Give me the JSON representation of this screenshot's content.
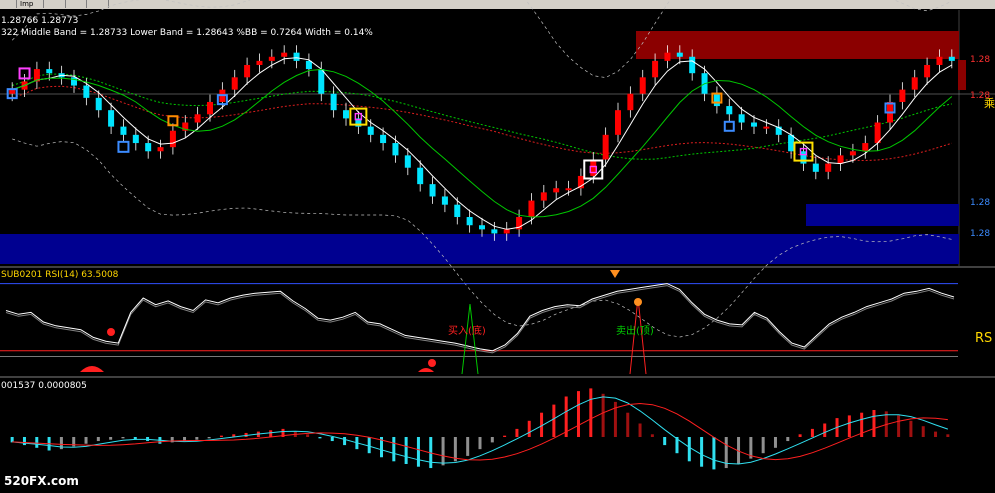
{
  "toolbar": {
    "tabs": [
      "",
      "Imp",
      "",
      "",
      ""
    ]
  },
  "main": {
    "price_line": "1.28766 1.28773",
    "bb_line": "322 Middle Band = 1.28733 Lower Band = 1.28643 %BB = 0.7264 Width = 0.14%",
    "right_labels": [
      "1.28",
      "1.28",
      "1.28",
      "1.28"
    ],
    "side_char": "乘"
  },
  "rsi": {
    "header": "SUB0201 RSI(14) 63.5008",
    "buy_label": "买入(底)",
    "sell_label": "卖出(顶)",
    "side_label": "RS"
  },
  "macd": {
    "header": "001537 0.0000805"
  },
  "watermark": "520FX.com",
  "colors": {
    "bull": "#ff0000",
    "bear": "#00e5ff",
    "zone_top": "#8b0000",
    "zone_bottom": "#000090",
    "ma_fast": "#ffffff",
    "ma_mid": "#00c800",
    "ma_slow": "#dc1e1e",
    "marker_magenta": "#ff40ff",
    "marker_yellow": "#ffe000",
    "marker_orange": "#ff8c00",
    "marker_blue": "#3c8cff",
    "marker_white": "#ffffff"
  },
  "chart_data": [
    {
      "type": "candlestick",
      "closes": [
        55,
        57,
        60,
        59,
        58,
        56,
        53,
        50,
        46,
        44,
        42,
        40,
        41,
        45,
        47,
        49,
        52,
        55,
        58,
        61,
        62,
        63,
        64,
        62,
        60,
        54,
        50,
        48,
        46,
        44,
        42,
        39,
        36,
        32,
        29,
        27,
        24,
        22,
        21,
        20,
        21,
        24,
        28,
        30,
        31,
        31,
        34,
        38,
        44,
        50,
        54,
        58,
        62,
        64,
        63,
        59,
        54,
        51,
        49,
        47,
        46,
        46,
        44,
        40,
        37,
        35,
        37,
        39,
        40,
        42,
        47,
        52,
        55,
        58,
        61,
        63,
        62
      ],
      "bollinger": true,
      "moving_averages": [
        "fast",
        "mid",
        "slow"
      ],
      "zones": [
        "resistance",
        "support"
      ],
      "right_axis_labels": [
        "1.28",
        "1.28",
        "1.28",
        "1.28"
      ]
    },
    {
      "type": "line",
      "name": "RSI(14)",
      "value": 63.5008,
      "signals": [
        "买入(底)",
        "卖出(顶)"
      ],
      "values": [
        62,
        58,
        60,
        50,
        46,
        44,
        42,
        34,
        30,
        28,
        60,
        75,
        68,
        72,
        66,
        62,
        73,
        70,
        75,
        78,
        80,
        81,
        82,
        72,
        64,
        54,
        52,
        55,
        60,
        50,
        48,
        42,
        36,
        34,
        32,
        30,
        28,
        25,
        22,
        20,
        26,
        38,
        56,
        62,
        66,
        68,
        67,
        74,
        78,
        82,
        84,
        86,
        88,
        90,
        84,
        70,
        58,
        52,
        48,
        47,
        60,
        54,
        40,
        28,
        24,
        36,
        48,
        55,
        60,
        66,
        70,
        74,
        80,
        82,
        85,
        80,
        76
      ]
    },
    {
      "type": "bar",
      "name": "MACD",
      "value": 8.05e-05,
      "values": [
        -4,
        -6,
        -8,
        -10,
        -9,
        -7,
        -5,
        -3,
        -2,
        -1,
        -2,
        -3,
        -5,
        -4,
        -3,
        -2,
        -1,
        1,
        2,
        3,
        4,
        5,
        6,
        4,
        2,
        -1,
        -3,
        -6,
        -9,
        -12,
        -15,
        -18,
        -20,
        -22,
        -23,
        -21,
        -18,
        -14,
        -9,
        -4,
        1,
        6,
        12,
        18,
        24,
        30,
        34,
        36,
        32,
        26,
        18,
        10,
        2,
        -6,
        -12,
        -18,
        -22,
        -24,
        -23,
        -20,
        -16,
        -12,
        -8,
        -3,
        2,
        6,
        10,
        14,
        16,
        18,
        20,
        19,
        16,
        12,
        8,
        4,
        2
      ],
      "signal_lines": [
        "macd",
        "signal"
      ]
    }
  ]
}
